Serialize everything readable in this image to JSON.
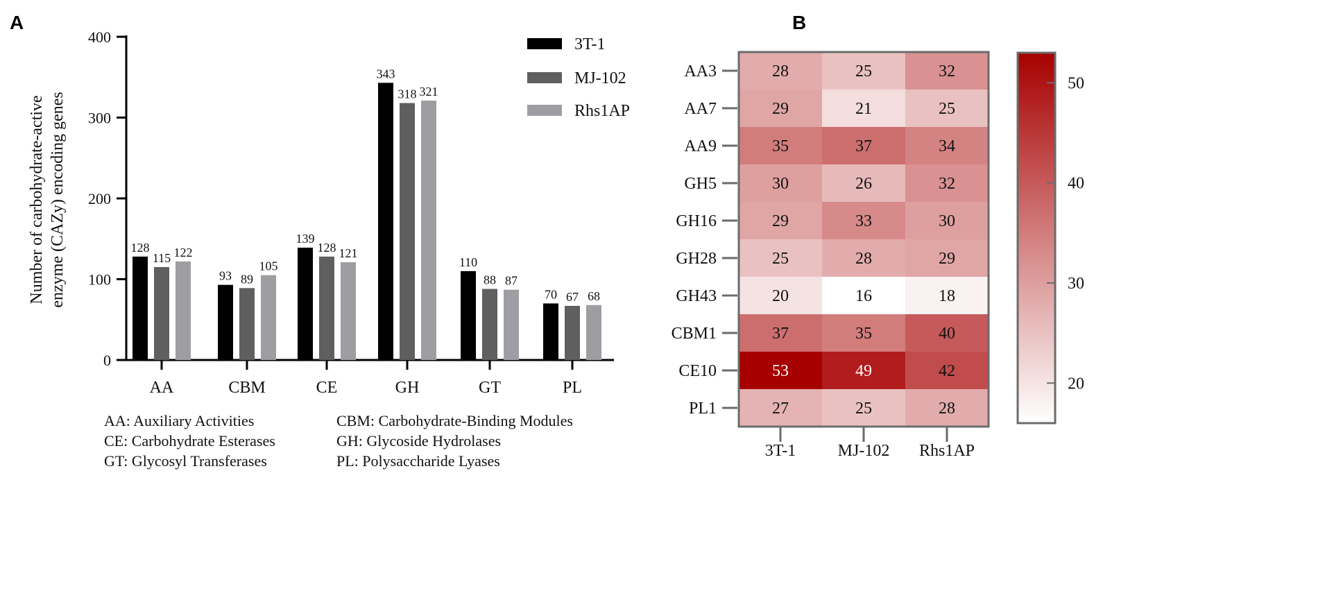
{
  "panels": {
    "a": "A",
    "b": "B"
  },
  "chart_data": [
    {
      "type": "bar",
      "categories": [
        "AA",
        "CBM",
        "CE",
        "GH",
        "GT",
        "PL"
      ],
      "series": [
        {
          "name": "3T-1",
          "color": "#000000",
          "values": [
            128,
            93,
            139,
            343,
            110,
            70
          ]
        },
        {
          "name": "MJ-102",
          "color": "#5f5f5f",
          "values": [
            115,
            89,
            128,
            318,
            88,
            67
          ]
        },
        {
          "name": "Rhs1AP",
          "color": "#9e9ea2",
          "values": [
            122,
            105,
            121,
            321,
            87,
            68
          ]
        }
      ],
      "ylabel_lines": [
        "Number of carbohydrate-active",
        "enzyme (CAZy) encoding genes"
      ],
      "ylim": [
        0,
        400
      ],
      "yticks": [
        0,
        100,
        200,
        300,
        400
      ],
      "legend_position": "top-right",
      "notes": [
        "AA: Auxiliary Activities",
        "CBM: Carbohydrate-Binding Modules",
        "CE: Carbohydrate Esterases",
        "GH: Glycoside Hydrolases",
        "GT: Glycosyl Transferases",
        "PL: Polysaccharide Lyases"
      ]
    },
    {
      "type": "heatmap",
      "rows": [
        "AA3",
        "AA7",
        "AA9",
        "GH5",
        "GH16",
        "GH28",
        "GH43",
        "CBM1",
        "CE10",
        "PL1"
      ],
      "columns": [
        "3T-1",
        "MJ-102",
        "Rhs1AP"
      ],
      "values": [
        [
          28,
          25,
          32
        ],
        [
          29,
          21,
          25
        ],
        [
          35,
          37,
          34
        ],
        [
          30,
          26,
          32
        ],
        [
          29,
          33,
          30
        ],
        [
          25,
          28,
          29
        ],
        [
          20,
          16,
          18
        ],
        [
          37,
          35,
          40
        ],
        [
          53,
          49,
          42
        ],
        [
          27,
          25,
          28
        ]
      ],
      "colorbar": {
        "min": 16,
        "max": 53,
        "ticks": [
          20,
          30,
          40,
          50
        ],
        "low_color": "#ffffff",
        "high_color": "#a70000"
      }
    }
  ]
}
